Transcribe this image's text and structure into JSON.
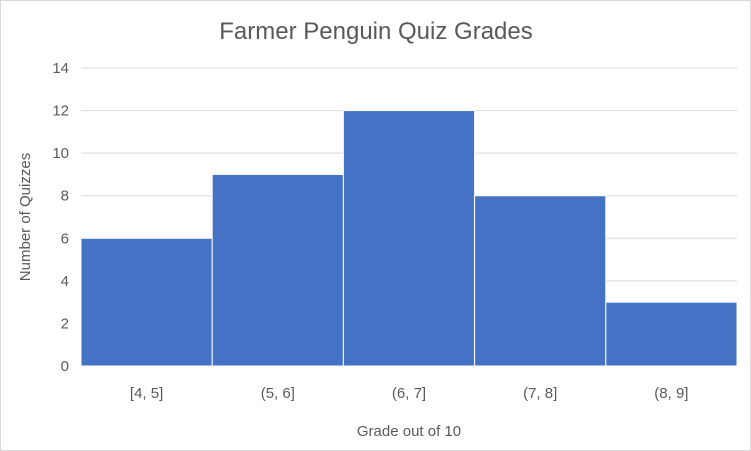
{
  "chart_data": {
    "type": "bar",
    "title": "Farmer Penguin Quiz Grades",
    "xlabel": "Grade out of 10",
    "ylabel": "Number of Quizzes",
    "categories": [
      "[4, 5]",
      "(5, 6]",
      "(6, 7]",
      "(7, 8]",
      "(8, 9]"
    ],
    "values": [
      6,
      9,
      12,
      8,
      3
    ],
    "ylim": [
      0,
      14
    ],
    "yticks": [
      0,
      2,
      4,
      6,
      8,
      10,
      12,
      14
    ],
    "grid": true,
    "legend": "none",
    "colors": {
      "bar": "#4472C4",
      "gridline": "#d9d9d9",
      "text": "#595959"
    }
  }
}
